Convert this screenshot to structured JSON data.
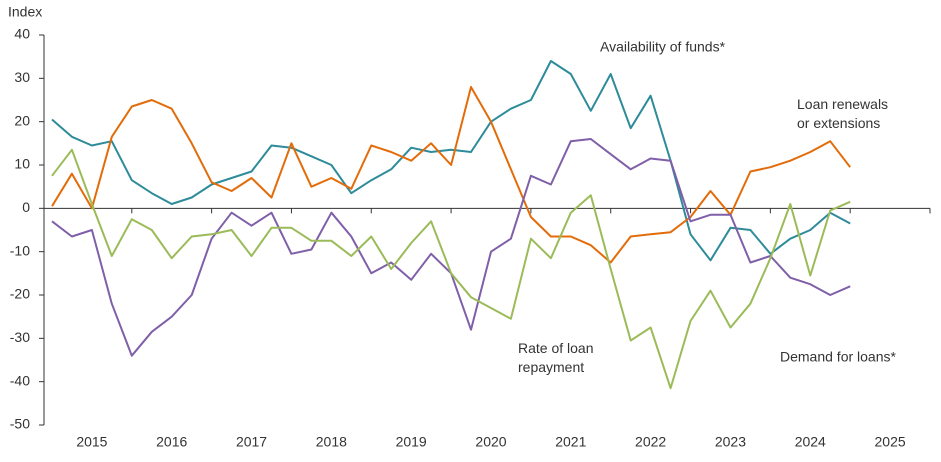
{
  "chart_data": {
    "type": "line",
    "y_label": "Index",
    "x": [
      2015,
      2015.25,
      2015.5,
      2015.75,
      2016,
      2016.25,
      2016.5,
      2016.75,
      2017,
      2017.25,
      2017.5,
      2017.75,
      2018,
      2018.25,
      2018.5,
      2018.75,
      2019,
      2019.25,
      2019.5,
      2019.75,
      2020,
      2020.25,
      2020.5,
      2020.75,
      2021,
      2021.25,
      2021.5,
      2021.75,
      2022,
      2022.25,
      2022.5,
      2022.75,
      2023,
      2023.25,
      2023.5,
      2023.75,
      2024,
      2024.25,
      2024.5,
      2024.75,
      2025
    ],
    "xlim": [
      2014.9,
      2026
    ],
    "xticks": [
      2015,
      2016,
      2017,
      2018,
      2019,
      2020,
      2021,
      2022,
      2023,
      2024,
      2025
    ],
    "ylim": [
      -50,
      40
    ],
    "yticks": [
      -50,
      -40,
      -30,
      -20,
      -10,
      0,
      10,
      20,
      30,
      40
    ],
    "grid": false,
    "series": [
      {
        "name": "Availability of funds*",
        "color": "#2e8b9a",
        "values": [
          20.5,
          16.5,
          14.5,
          15.5,
          6.5,
          3.5,
          1,
          2.5,
          5.5,
          7,
          8.5,
          14.5,
          14,
          12,
          10,
          3.5,
          6.5,
          9,
          14,
          13,
          13.5,
          13,
          20,
          23,
          25,
          34,
          31,
          22.5,
          31,
          18.5,
          26,
          11,
          -6,
          -12,
          -4.5,
          -5,
          -10.5,
          -7,
          -5,
          -1,
          -3.5
        ]
      },
      {
        "name": "Loan renewals or extensions",
        "color": "#e36c0a",
        "values": [
          0.5,
          8,
          0,
          16.5,
          23.5,
          25,
          23,
          15,
          6,
          4,
          7,
          2.5,
          15,
          5,
          7,
          4.5,
          14.5,
          13,
          11,
          15,
          10,
          28,
          20,
          9,
          -2,
          -6.5,
          -6.5,
          -8.5,
          -12.5,
          -6.5,
          -6,
          -5.5,
          -2,
          4,
          -1.5,
          8.5,
          9.5,
          11,
          13,
          15.5,
          9.5
        ]
      },
      {
        "name": "Rate of loan repayment",
        "color": "#7f5fa8",
        "values": [
          -3,
          -6.5,
          -5,
          -22,
          -34,
          -28.5,
          -25,
          -20,
          -7,
          -1,
          -4,
          -1,
          -10.5,
          -9.5,
          -1,
          -6.5,
          -15,
          -12.5,
          -16.5,
          -10.5,
          -15,
          -28,
          -10,
          -7,
          7.5,
          5.5,
          15.5,
          16,
          12.5,
          9,
          11.5,
          11,
          -3,
          -1.5,
          -1.5,
          -12.5,
          -11,
          -16,
          -17.5,
          -20,
          -18
        ]
      },
      {
        "name": "Demand for loans*",
        "color": "#9bbb59",
        "values": [
          7.5,
          13.5,
          1,
          -11,
          -2.5,
          -5,
          -11.5,
          -6.5,
          -6,
          -5,
          -11,
          -4.5,
          -4.5,
          -7.5,
          -7.5,
          -11,
          -6.5,
          -14,
          -8,
          -3,
          -15,
          -20.5,
          -23,
          -25.5,
          -7,
          -11.5,
          -1,
          3,
          -14,
          -30.5,
          -27.5,
          -41.5,
          -26,
          -19,
          -27.5,
          -22,
          -11.5,
          1,
          -15.5,
          -0.5,
          1.5
        ]
      }
    ]
  }
}
